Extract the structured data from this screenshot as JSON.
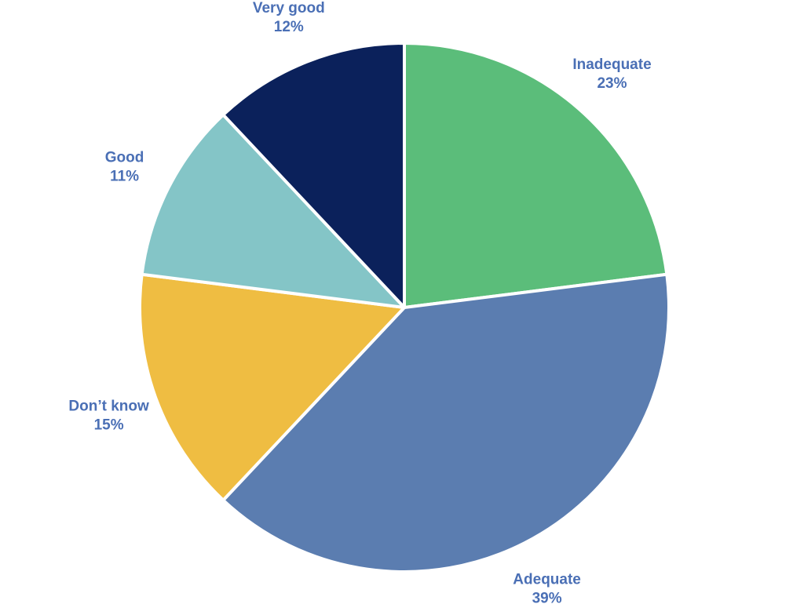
{
  "chart_data": {
    "type": "pie",
    "title": "",
    "start_angle_deg": 0,
    "direction": "clockwise",
    "label_color": "#4a6fb5",
    "slices": [
      {
        "label": "Inadequate",
        "value": 23,
        "value_label": "23%",
        "color": "#5bbd7a"
      },
      {
        "label": "Adequate",
        "value": 39,
        "value_label": "39%",
        "color": "#5b7db0"
      },
      {
        "label": "Don’t know",
        "value": 15,
        "value_label": "15%",
        "color": "#efbd42"
      },
      {
        "label": "Good",
        "value": 11,
        "value_label": "11%",
        "color": "#84c5c7"
      },
      {
        "label": "Very good",
        "value": 12,
        "value_label": "12%",
        "color": "#0b215b"
      }
    ]
  }
}
